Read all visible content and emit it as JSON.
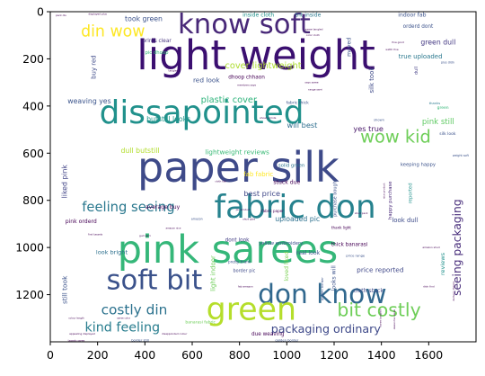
{
  "chart_data": {
    "type": "wordcloud",
    "title": "",
    "xlabel": "",
    "ylabel": "",
    "xlim": [
      0,
      1800
    ],
    "ylim": [
      1400,
      0
    ],
    "x_ticks": [
      0,
      200,
      400,
      600,
      800,
      1000,
      1200,
      1400,
      1600
    ],
    "y_ticks": [
      0,
      200,
      400,
      600,
      800,
      1000,
      1200
    ],
    "colormap": "viridis",
    "words": [
      {
        "text": "light weight",
        "x": 870,
        "y": 185,
        "size": 220,
        "color": "#3b0f70",
        "rotate": 0
      },
      {
        "text": "paper silk",
        "x": 795,
        "y": 660,
        "size": 225,
        "color": "#3e4a89",
        "rotate": 0
      },
      {
        "text": "pink sarees",
        "x": 750,
        "y": 1010,
        "size": 210,
        "color": "#35b779",
        "rotate": 0
      },
      {
        "text": "dissapointed",
        "x": 640,
        "y": 430,
        "size": 175,
        "color": "#21918c",
        "rotate": 0
      },
      {
        "text": "know soft",
        "x": 820,
        "y": 55,
        "size": 150,
        "color": "#482878",
        "rotate": 0
      },
      {
        "text": "fabric don",
        "x": 1035,
        "y": 830,
        "size": 175,
        "color": "#26828e",
        "rotate": 0
      },
      {
        "text": "soft bit",
        "x": 440,
        "y": 1140,
        "size": 150,
        "color": "#3b528b",
        "rotate": 0
      },
      {
        "text": "don know",
        "x": 1150,
        "y": 1195,
        "size": 145,
        "color": "#31688e",
        "rotate": 0
      },
      {
        "text": "green",
        "x": 850,
        "y": 1265,
        "size": 170,
        "color": "#b5de2b",
        "rotate": 0
      },
      {
        "text": "wow kid",
        "x": 1460,
        "y": 530,
        "size": 95,
        "color": "#6ece58",
        "rotate": 0
      },
      {
        "text": "bit costly",
        "x": 1390,
        "y": 1265,
        "size": 100,
        "color": "#6ece58",
        "rotate": 0
      },
      {
        "text": "din wow",
        "x": 265,
        "y": 85,
        "size": 85,
        "color": "#fde725",
        "rotate": 0
      },
      {
        "text": "costly din",
        "x": 355,
        "y": 1265,
        "size": 75,
        "color": "#2c728e",
        "rotate": 0
      },
      {
        "text": "kind feeling",
        "x": 305,
        "y": 1340,
        "size": 70,
        "color": "#287d8e",
        "rotate": 0
      },
      {
        "text": "feeling seeing",
        "x": 330,
        "y": 830,
        "size": 72,
        "color": "#2a788e",
        "rotate": 0
      },
      {
        "text": "packaging ordinary",
        "x": 1165,
        "y": 1345,
        "size": 62,
        "color": "#3e4989",
        "rotate": 0
      },
      {
        "text": "seeing packaging",
        "x": 1720,
        "y": 1000,
        "size": 60,
        "color": "#472c7a",
        "rotate": -90
      },
      {
        "text": "cover lightweight",
        "x": 900,
        "y": 230,
        "size": 48,
        "color": "#addc30",
        "rotate": 0
      },
      {
        "text": "plastic cover",
        "x": 755,
        "y": 375,
        "size": 48,
        "color": "#2fb47c",
        "rotate": 0
      },
      {
        "text": "green dull",
        "x": 1640,
        "y": 130,
        "size": 38,
        "color": "#443983",
        "rotate": 0
      },
      {
        "text": "pink still",
        "x": 1640,
        "y": 470,
        "size": 42,
        "color": "#5ec962",
        "rotate": 0
      },
      {
        "text": "yes true",
        "x": 1345,
        "y": 495,
        "size": 40,
        "color": "#481769",
        "rotate": 0
      },
      {
        "text": "will best",
        "x": 1065,
        "y": 480,
        "size": 40,
        "color": "#2e6e8e",
        "rotate": 0
      },
      {
        "text": "weaving yes",
        "x": 165,
        "y": 380,
        "size": 38,
        "color": "#3a538b",
        "rotate": 0
      },
      {
        "text": "butstill looks",
        "x": 500,
        "y": 455,
        "size": 38,
        "color": "#1f968b",
        "rotate": 0
      },
      {
        "text": "dull butstill",
        "x": 380,
        "y": 590,
        "size": 38,
        "color": "#b2dd2d",
        "rotate": 0
      },
      {
        "text": "lightweight reviews",
        "x": 790,
        "y": 595,
        "size": 36,
        "color": "#3aba76",
        "rotate": 0
      },
      {
        "text": "fab fabric",
        "x": 880,
        "y": 690,
        "size": 34,
        "color": "#fde725",
        "rotate": 0
      },
      {
        "text": "best price",
        "x": 895,
        "y": 770,
        "size": 40,
        "color": "#3f4788",
        "rotate": 0
      },
      {
        "text": "uploaded pic",
        "x": 1045,
        "y": 880,
        "size": 38,
        "color": "#2d708e",
        "rotate": 0
      },
      {
        "text": "look dull",
        "x": 1500,
        "y": 885,
        "size": 34,
        "color": "#3e4c8a",
        "rotate": 0
      },
      {
        "text": "liked pink",
        "x": 60,
        "y": 720,
        "size": 38,
        "color": "#414487",
        "rotate": -90
      },
      {
        "text": "still took",
        "x": 60,
        "y": 1180,
        "size": 36,
        "color": "#3b528b",
        "rotate": -90
      },
      {
        "text": "buy red",
        "x": 185,
        "y": 235,
        "size": 34,
        "color": "#3e4a89",
        "rotate": -90
      },
      {
        "text": "red look",
        "x": 660,
        "y": 290,
        "size": 36,
        "color": "#3b528b",
        "rotate": 0
      },
      {
        "text": "dhoop chhaon",
        "x": 830,
        "y": 280,
        "size": 28,
        "color": "#440154",
        "rotate": 0
      },
      {
        "text": "took green",
        "x": 395,
        "y": 30,
        "size": 38,
        "color": "#3b528b",
        "rotate": 0
      },
      {
        "text": "true uploaded",
        "x": 1565,
        "y": 190,
        "size": 34,
        "color": "#2a788e",
        "rotate": 0
      },
      {
        "text": "silk took",
        "x": 1360,
        "y": 290,
        "size": 34,
        "color": "#3e4a89",
        "rotate": -90
      },
      {
        "text": "prints clear",
        "x": 450,
        "y": 125,
        "size": 28,
        "color": "#46327e",
        "rotate": 0
      },
      {
        "text": "real look",
        "x": 1090,
        "y": 1025,
        "size": 30,
        "color": "#3b528b",
        "rotate": 0
      },
      {
        "text": "pink orderd",
        "x": 130,
        "y": 890,
        "size": 30,
        "color": "#440154",
        "rotate": 0
      },
      {
        "text": "look bright",
        "x": 260,
        "y": 1020,
        "size": 32,
        "color": "#2d708e",
        "rotate": 0
      },
      {
        "text": "price reported",
        "x": 1395,
        "y": 1095,
        "size": 36,
        "color": "#3f4788",
        "rotate": 0
      },
      {
        "text": "average buy",
        "x": 475,
        "y": 830,
        "size": 30,
        "color": "#440154",
        "rotate": 0
      },
      {
        "text": "dont look",
        "x": 790,
        "y": 970,
        "size": 28,
        "color": "#433e85",
        "rotate": 0
      },
      {
        "text": "light indoor",
        "x": 690,
        "y": 1110,
        "size": 34,
        "color": "#6ece58",
        "rotate": -90
      },
      {
        "text": "loved liked",
        "x": 1000,
        "y": 1080,
        "size": 30,
        "color": "#7ad151",
        "rotate": -90
      },
      {
        "text": "looks will",
        "x": 1200,
        "y": 1130,
        "size": 30,
        "color": "#3b528b",
        "rotate": -90
      },
      {
        "text": "inside cloth",
        "x": 880,
        "y": 15,
        "size": 30,
        "color": "#21918c",
        "rotate": 0
      },
      {
        "text": "tnt inside",
        "x": 1090,
        "y": 15,
        "size": 30,
        "color": "#2a788e",
        "rotate": 0
      },
      {
        "text": "indoor fab",
        "x": 1530,
        "y": 15,
        "size": 30,
        "color": "#3b528b",
        "rotate": 0
      },
      {
        "text": "cloth stuck",
        "x": 1345,
        "y": 1185,
        "size": 30,
        "color": "#3e4a89",
        "rotate": 0
      },
      {
        "text": "due weaving",
        "x": 920,
        "y": 1370,
        "size": 28,
        "color": "#440154",
        "rotate": 0
      },
      {
        "text": "reviews",
        "x": 1660,
        "y": 1070,
        "size": 32,
        "color": "#21918c",
        "rotate": -90
      },
      {
        "text": "thick banarasi",
        "x": 1265,
        "y": 990,
        "size": 28,
        "color": "#440154",
        "rotate": 0
      },
      {
        "text": "yellow embroidery",
        "x": 975,
        "y": 985,
        "size": 26,
        "color": "#3b528b",
        "rotate": 0
      },
      {
        "text": "stuck due",
        "x": 1000,
        "y": 725,
        "size": 30,
        "color": "#440154",
        "rotate": 0
      },
      {
        "text": "solid green",
        "x": 1020,
        "y": 655,
        "size": 26,
        "color": "#2c728e",
        "rotate": 0
      },
      {
        "text": "keeping happy",
        "x": 1555,
        "y": 650,
        "size": 26,
        "color": "#3b528b",
        "rotate": 0
      },
      {
        "text": "happy purchase",
        "x": 1440,
        "y": 800,
        "size": 26,
        "color": "#482878",
        "rotate": -90
      },
      {
        "text": "moved",
        "x": 1265,
        "y": 150,
        "size": 30,
        "color": "#3b528b",
        "rotate": -90
      },
      {
        "text": "orderd dont",
        "x": 1555,
        "y": 65,
        "size": 28,
        "color": "#3b528b",
        "rotate": 0
      },
      {
        "text": "pic dhoop",
        "x": 450,
        "y": 175,
        "size": 26,
        "color": "#35b779",
        "rotate": 0
      },
      {
        "text": "border pic",
        "x": 820,
        "y": 1100,
        "size": 24,
        "color": "#3e4a89",
        "rotate": 0
      },
      {
        "text": "purchase bought",
        "x": 1205,
        "y": 790,
        "size": 24,
        "color": "#3b528b",
        "rotate": -90
      },
      {
        "text": "silk look",
        "x": 1680,
        "y": 520,
        "size": 22,
        "color": "#3b528b",
        "rotate": 0
      },
      {
        "text": "green",
        "x": 1660,
        "y": 410,
        "size": 22,
        "color": "#35b779",
        "rotate": 0
      },
      {
        "text": "reported",
        "x": 1525,
        "y": 770,
        "size": 26,
        "color": "#21918c",
        "rotate": -90
      },
      {
        "text": "dull",
        "x": 1550,
        "y": 250,
        "size": 24,
        "color": "#433e85",
        "rotate": -90
      },
      {
        "text": "fabric thick",
        "x": 1045,
        "y": 390,
        "size": 22,
        "color": "#3b528b",
        "rotate": 0
      },
      {
        "text": "pretty thank",
        "x": 800,
        "y": 1060,
        "size": 20,
        "color": "#3b528b",
        "rotate": 0
      },
      {
        "text": "fabric paper",
        "x": 940,
        "y": 845,
        "size": 20,
        "color": "#440154",
        "rotate": 0
      },
      {
        "text": "thank light",
        "x": 1230,
        "y": 915,
        "size": 20,
        "color": "#440154",
        "rotate": 0
      },
      {
        "text": "price range",
        "x": 1290,
        "y": 1035,
        "size": 18,
        "color": "#3b528b",
        "rotate": 0
      },
      {
        "text": "plus didn",
        "x": 1680,
        "y": 215,
        "size": 16,
        "color": "#3b528b",
        "rotate": 0
      },
      {
        "text": "golden border",
        "x": 1150,
        "y": 1175,
        "size": 18,
        "color": "#3b528b",
        "rotate": -90
      },
      {
        "text": "banarasi fabric",
        "x": 635,
        "y": 1320,
        "size": 22,
        "color": "#6ece58",
        "rotate": 0
      },
      {
        "text": "border still",
        "x": 380,
        "y": 1395,
        "size": 18,
        "color": "#3b528b",
        "rotate": 0
      },
      {
        "text": "golden border",
        "x": 1000,
        "y": 1395,
        "size": 18,
        "color": "#3b528b",
        "rotate": 0
      },
      {
        "text": "thanks",
        "x": 1625,
        "y": 390,
        "size": 18,
        "color": "#2a788e",
        "rotate": 0
      },
      {
        "text": "shown",
        "x": 1390,
        "y": 460,
        "size": 18,
        "color": "#3b528b",
        "rotate": 0
      },
      {
        "text": "weight soft",
        "x": 1735,
        "y": 610,
        "size": 16,
        "color": "#3b528b",
        "rotate": 0
      },
      {
        "text": "amazon",
        "x": 620,
        "y": 880,
        "size": 16,
        "color": "#3b528b",
        "rotate": 0
      },
      {
        "text": "pack dis",
        "x": 45,
        "y": 15,
        "size": 14,
        "color": "#440154",
        "rotate": 0
      },
      {
        "text": "displayed plus",
        "x": 200,
        "y": 10,
        "size": 14,
        "color": "#440154",
        "rotate": 0
      },
      {
        "text": "tassels saree",
        "x": 110,
        "y": 1395,
        "size": 14,
        "color": "#440154",
        "rotate": 0
      },
      {
        "text": "appealing displayed",
        "x": 135,
        "y": 1365,
        "size": 14,
        "color": "#440154",
        "rotate": 0
      },
      {
        "text": "colour length",
        "x": 110,
        "y": 1300,
        "size": 13,
        "color": "#440154",
        "rotate": 0
      },
      {
        "text": "saree color",
        "x": 310,
        "y": 1300,
        "size": 13,
        "color": "#440154",
        "rotate": 0
      },
      {
        "text": "gud sarri",
        "x": 400,
        "y": 950,
        "size": 14,
        "color": "#440154",
        "rotate": 0
      },
      {
        "text": "amazon nice",
        "x": 520,
        "y": 920,
        "size": 13,
        "color": "#440154",
        "rotate": 0
      },
      {
        "text": "find tassels",
        "x": 190,
        "y": 945,
        "size": 14,
        "color": "#440154",
        "rotate": 0
      },
      {
        "text": "cloth fab",
        "x": 720,
        "y": 720,
        "size": 14,
        "color": "#440154",
        "rotate": 0
      },
      {
        "text": "fab amazon",
        "x": 825,
        "y": 1165,
        "size": 14,
        "color": "#440154",
        "rotate": 0
      },
      {
        "text": "didn find",
        "x": 1600,
        "y": 1165,
        "size": 14,
        "color": "#440154",
        "rotate": 0
      },
      {
        "text": "delivery thanks",
        "x": 1705,
        "y": 1185,
        "size": 14,
        "color": "#440154",
        "rotate": -90
      },
      {
        "text": "disappointed colour",
        "x": 525,
        "y": 1365,
        "size": 14,
        "color": "#440154",
        "rotate": 0
      },
      {
        "text": "shown prints",
        "x": 920,
        "y": 450,
        "size": 14,
        "color": "#440154",
        "rotate": 0
      },
      {
        "text": "color cloth",
        "x": 1110,
        "y": 100,
        "size": 14,
        "color": "#440154",
        "rotate": 0
      },
      {
        "text": "saree tangled",
        "x": 1115,
        "y": 75,
        "size": 14,
        "color": "#440154",
        "rotate": 0
      },
      {
        "text": "width fine",
        "x": 1445,
        "y": 160,
        "size": 14,
        "color": "#440154",
        "rotate": 0
      },
      {
        "text": "fine good",
        "x": 1470,
        "y": 130,
        "size": 14,
        "color": "#440154",
        "rotate": 0
      },
      {
        "text": "members says",
        "x": 830,
        "y": 310,
        "size": 14,
        "color": "#440154",
        "rotate": 0
      },
      {
        "text": "says saree",
        "x": 1105,
        "y": 300,
        "size": 14,
        "color": "#440154",
        "rotate": 0
      },
      {
        "text": "range sarri",
        "x": 1120,
        "y": 330,
        "size": 14,
        "color": "#440154",
        "rotate": 0
      },
      {
        "text": "nice product",
        "x": 1410,
        "y": 760,
        "size": 14,
        "color": "#440154",
        "rotate": -90
      },
      {
        "text": "pic product",
        "x": 815,
        "y": 840,
        "size": 14,
        "color": "#440154",
        "rotate": 0
      },
      {
        "text": "shud pack",
        "x": 1315,
        "y": 855,
        "size": 14,
        "color": "#440154",
        "rotate": 0
      },
      {
        "text": "shud give",
        "x": 840,
        "y": 880,
        "size": 14,
        "color": "#440154",
        "rotate": 0
      },
      {
        "text": "amazon shud",
        "x": 1610,
        "y": 1000,
        "size": 14,
        "color": "#440154",
        "rotate": 0
      },
      {
        "text": "awesome saree",
        "x": 1455,
        "y": 1305,
        "size": 14,
        "color": "#440154",
        "rotate": -90
      },
      {
        "text": "saree tangled",
        "x": 1395,
        "y": 1300,
        "size": 14,
        "color": "#440154",
        "rotate": -90
      },
      {
        "text": "tangled",
        "x": 520,
        "y": 250,
        "size": 14,
        "color": "#440154",
        "rotate": 0
      }
    ]
  }
}
